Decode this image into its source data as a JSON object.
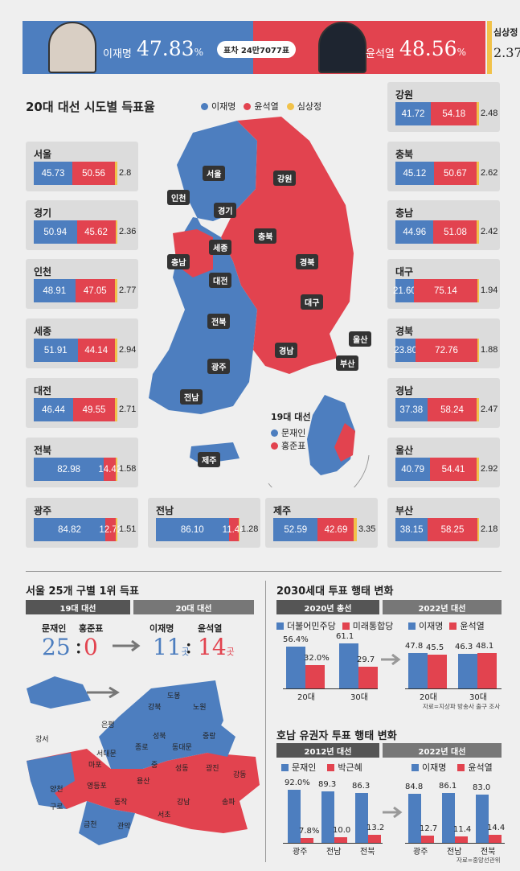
{
  "banner": {
    "lee_name": "이재명",
    "lee_pct": "47.83",
    "lee_unit": "%",
    "yoon_name": "윤석열",
    "yoon_pct": "48.56",
    "yoon_unit": "%",
    "margin": "표차 24만7077표",
    "sim_name": "심상정",
    "sim_pct": "2.37"
  },
  "map_section": {
    "title": "20대 대선 시도별 득표율",
    "legend": [
      "이재명",
      "윤석열",
      "심상정"
    ],
    "map_labels": [
      "서울",
      "인천",
      "경기",
      "강원",
      "세종",
      "충북",
      "충남",
      "경북",
      "대전",
      "대구",
      "전북",
      "울산",
      "경남",
      "광주",
      "부산",
      "전남",
      "제주"
    ],
    "inset_title": "19대 대선",
    "inset_legend": [
      "문재인",
      "홍준표"
    ]
  },
  "colors": {
    "lee": "#4d7ebf",
    "yoon": "#e2434f",
    "sim": "#f1c24a"
  },
  "chart_data": [
    {
      "type": "bar",
      "title": "20대 대선 시도별 득표율",
      "categories": [
        "서울",
        "경기",
        "인천",
        "세종",
        "대전",
        "전북",
        "광주",
        "전남",
        "제주",
        "강원",
        "충북",
        "충남",
        "대구",
        "경북",
        "경남",
        "울산",
        "부산"
      ],
      "series": [
        {
          "name": "이재명",
          "values": [
            "45.73",
            "50.94",
            "48.91",
            "51.91",
            "46.44",
            "82.98",
            "84.82",
            "86.10",
            "52.59",
            "41.72",
            "45.12",
            "44.96",
            "21.60",
            "23.80",
            "37.38",
            "40.79",
            "38.15"
          ]
        },
        {
          "name": "윤석열",
          "values": [
            "50.56",
            "45.62",
            "47.05",
            "44.14",
            "49.55",
            "14.42",
            "12.72",
            "11.44",
            "42.69",
            "54.18",
            "50.67",
            "51.08",
            "75.14",
            "72.76",
            "58.24",
            "54.41",
            "58.25"
          ]
        },
        {
          "name": "심상정",
          "values": [
            "2.8",
            "2.36",
            "2.77",
            "2.94",
            "2.71",
            "1.58",
            "1.51",
            "1.28",
            "3.35",
            "2.48",
            "2.62",
            "2.42",
            "1.94",
            "1.88",
            "2.47",
            "2.92",
            "2.18"
          ]
        }
      ]
    },
    {
      "type": "bar",
      "title": "2030세대 투표 행태 변화",
      "group_labels": [
        "2020년 총선",
        "2022년 대선"
      ],
      "legend_2020": [
        "더불어민주당",
        "미래통합당"
      ],
      "legend_2022": [
        "이재명",
        "윤석열"
      ],
      "categories": [
        "20대",
        "30대",
        "20대",
        "30대"
      ],
      "series": [
        {
          "name": "blue",
          "values": [
            "56.4%",
            "61.1",
            "47.8",
            "46.3"
          ]
        },
        {
          "name": "red",
          "values": [
            "32.0%",
            "29.7",
            "45.5",
            "48.1"
          ]
        }
      ],
      "num_blue": [
        56.4,
        61.1,
        47.8,
        46.3
      ],
      "num_red": [
        32.0,
        29.7,
        45.5,
        48.1
      ],
      "source": "자료=지상파 방송사 출구 조사"
    },
    {
      "type": "bar",
      "title": "호남 유권자 투표 행태 변화",
      "group_labels": [
        "2012년 대선",
        "2022년 대선"
      ],
      "legend_2012": [
        "문재인",
        "박근혜"
      ],
      "legend_2022": [
        "이재명",
        "윤석열"
      ],
      "categories": [
        "광주",
        "전남",
        "전북",
        "광주",
        "전남",
        "전북"
      ],
      "series": [
        {
          "name": "blue",
          "values": [
            "92.0%",
            "89.3",
            "86.3",
            "84.8",
            "86.1",
            "83.0"
          ]
        },
        {
          "name": "red",
          "values": [
            "7.8%",
            "10.0",
            "13.2",
            "12.7",
            "11.4",
            "14.4"
          ]
        }
      ],
      "num_blue": [
        92.0,
        89.3,
        86.3,
        84.8,
        86.1,
        83.0
      ],
      "num_red": [
        7.8,
        10.0,
        13.2,
        12.7,
        11.4,
        14.4
      ],
      "source": "자료=중앙선관위"
    }
  ],
  "seoul": {
    "title": "서울 25개 구별 1위 득표",
    "tag19": "19대 대선",
    "tag20": "20대 대선",
    "moon": "문재인",
    "hong": "홍준표",
    "lee": "이재명",
    "yoon": "윤석열",
    "moon_count": "25",
    "hong_count": "0",
    "lee_count": "11",
    "yoon_count": "14",
    "unit": "곳",
    "colon": ":",
    "gu_labels": [
      "도봉",
      "노원",
      "강북",
      "은평",
      "성북",
      "중랑",
      "종로",
      "동대문",
      "서대문",
      "마포",
      "중",
      "용산",
      "성동",
      "광진",
      "강서",
      "양천",
      "영등포",
      "동작",
      "강동",
      "구로",
      "강남",
      "송파",
      "금천",
      "관악",
      "서초"
    ]
  }
}
